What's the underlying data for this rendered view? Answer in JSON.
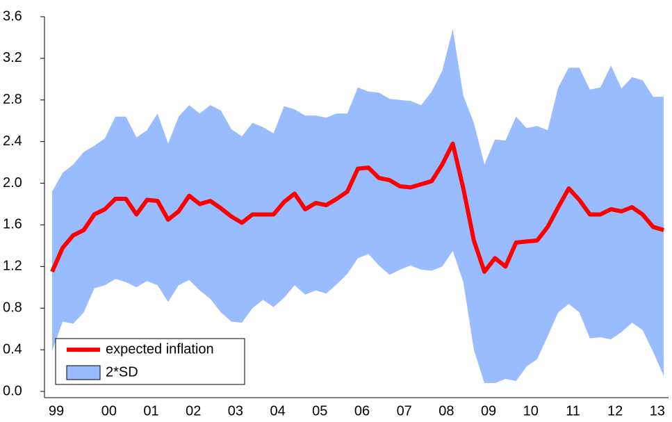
{
  "chart_data": {
    "type": "line",
    "categories": [
      "99",
      null,
      null,
      null,
      null,
      "00",
      null,
      null,
      null,
      "01",
      null,
      null,
      null,
      "02",
      null,
      null,
      null,
      "03",
      null,
      null,
      null,
      "04",
      null,
      null,
      null,
      "05",
      null,
      null,
      null,
      "06",
      null,
      null,
      null,
      "07",
      null,
      null,
      null,
      "08",
      null,
      null,
      null,
      "09",
      null,
      null,
      null,
      "10",
      null,
      null,
      null,
      "11",
      null,
      null,
      null,
      "12",
      null,
      null,
      null,
      "13",
      null
    ],
    "series": [
      {
        "name": "expected inflation",
        "color": "#ff0000",
        "values": [
          1.15,
          1.38,
          1.5,
          1.55,
          1.7,
          1.75,
          1.85,
          1.85,
          1.7,
          1.84,
          1.83,
          1.65,
          1.73,
          1.88,
          1.8,
          1.83,
          1.76,
          1.68,
          1.62,
          1.7,
          1.7,
          1.7,
          1.82,
          1.9,
          1.75,
          1.81,
          1.79,
          1.85,
          1.92,
          2.14,
          2.15,
          2.05,
          2.03,
          1.97,
          1.96,
          1.99,
          2.02,
          2.18,
          2.38,
          1.95,
          1.45,
          1.15,
          1.28,
          1.2,
          1.43,
          1.44,
          1.45,
          1.58,
          1.77,
          1.95,
          1.84,
          1.7,
          1.7,
          1.75,
          1.73,
          1.77,
          1.7,
          1.58,
          1.55
        ]
      },
      {
        "name": "2*SD",
        "color": "#99bbff",
        "upper": [
          1.92,
          2.1,
          2.18,
          2.3,
          2.36,
          2.43,
          2.64,
          2.64,
          2.44,
          2.51,
          2.67,
          2.38,
          2.64,
          2.75,
          2.67,
          2.75,
          2.7,
          2.52,
          2.45,
          2.58,
          2.54,
          2.48,
          2.74,
          2.71,
          2.65,
          2.65,
          2.63,
          2.67,
          2.67,
          2.92,
          2.88,
          2.87,
          2.81,
          2.8,
          2.79,
          2.75,
          2.88,
          3.08,
          3.48,
          2.84,
          2.58,
          2.18,
          2.42,
          2.41,
          2.64,
          2.53,
          2.55,
          2.51,
          2.92,
          3.11,
          3.11,
          2.9,
          2.92,
          3.13,
          2.91,
          3.02,
          2.99,
          2.83,
          2.83
        ],
        "lower": [
          0.39,
          0.67,
          0.65,
          0.76,
          0.99,
          1.02,
          1.08,
          1.05,
          1.0,
          1.06,
          1.02,
          0.86,
          1.02,
          1.07,
          0.97,
          0.89,
          0.76,
          0.67,
          0.66,
          0.8,
          0.88,
          0.81,
          0.9,
          1.02,
          0.93,
          0.97,
          0.94,
          1.03,
          1.13,
          1.28,
          1.32,
          1.21,
          1.12,
          1.17,
          1.21,
          1.17,
          1.16,
          1.2,
          1.35,
          1.05,
          0.4,
          0.08,
          0.08,
          0.12,
          0.1,
          0.24,
          0.31,
          0.53,
          0.76,
          0.84,
          0.76,
          0.51,
          0.52,
          0.5,
          0.57,
          0.66,
          0.59,
          0.38,
          0.15
        ]
      }
    ],
    "ylim": [
      0,
      3.6
    ],
    "yticks": [
      {
        "value": 0,
        "label": "0.0"
      },
      0.4,
      0.8,
      1.2,
      1.6,
      {
        "value": 2,
        "label": "2.0"
      },
      2.4,
      2.8,
      3.2,
      3.6
    ],
    "grid": false,
    "legend": "lower left"
  }
}
